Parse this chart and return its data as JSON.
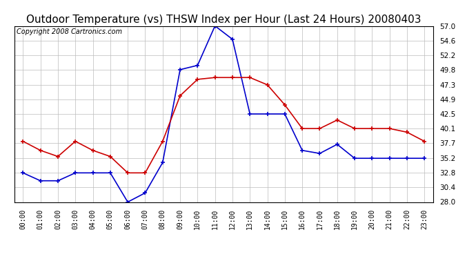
{
  "title": "Outdoor Temperature (vs) THSW Index per Hour (Last 24 Hours) 20080403",
  "copyright": "Copyright 2008 Cartronics.com",
  "hours": [
    "00:00",
    "01:00",
    "02:00",
    "03:00",
    "04:00",
    "05:00",
    "06:00",
    "07:00",
    "08:00",
    "09:00",
    "10:00",
    "11:00",
    "12:00",
    "13:00",
    "14:00",
    "15:00",
    "16:00",
    "17:00",
    "18:00",
    "19:00",
    "20:00",
    "21:00",
    "22:00",
    "23:00"
  ],
  "thsw": [
    32.8,
    31.5,
    31.5,
    32.8,
    32.8,
    32.8,
    28.0,
    29.5,
    34.5,
    49.8,
    50.5,
    57.0,
    54.8,
    42.5,
    42.5,
    42.5,
    36.5,
    36.0,
    37.5,
    35.2,
    35.2,
    35.2,
    35.2,
    35.2
  ],
  "temp": [
    38.0,
    36.5,
    35.5,
    38.0,
    36.5,
    35.5,
    32.8,
    32.8,
    38.0,
    45.5,
    48.2,
    48.5,
    48.5,
    48.5,
    47.3,
    44.0,
    40.1,
    40.1,
    41.5,
    40.1,
    40.1,
    40.1,
    39.5,
    38.0
  ],
  "thsw_color": "#0000cc",
  "temp_color": "#cc0000",
  "bg_color": "#ffffff",
  "plot_bg": "#ffffff",
  "grid_color": "#bbbbbb",
  "ylim": [
    28.0,
    57.0
  ],
  "yticks": [
    28.0,
    30.4,
    32.8,
    35.2,
    37.7,
    40.1,
    42.5,
    44.9,
    47.3,
    49.8,
    52.2,
    54.6,
    57.0
  ],
  "title_fontsize": 11,
  "copyright_fontsize": 7,
  "marker": "+",
  "linewidth": 1.2,
  "markersize": 4
}
